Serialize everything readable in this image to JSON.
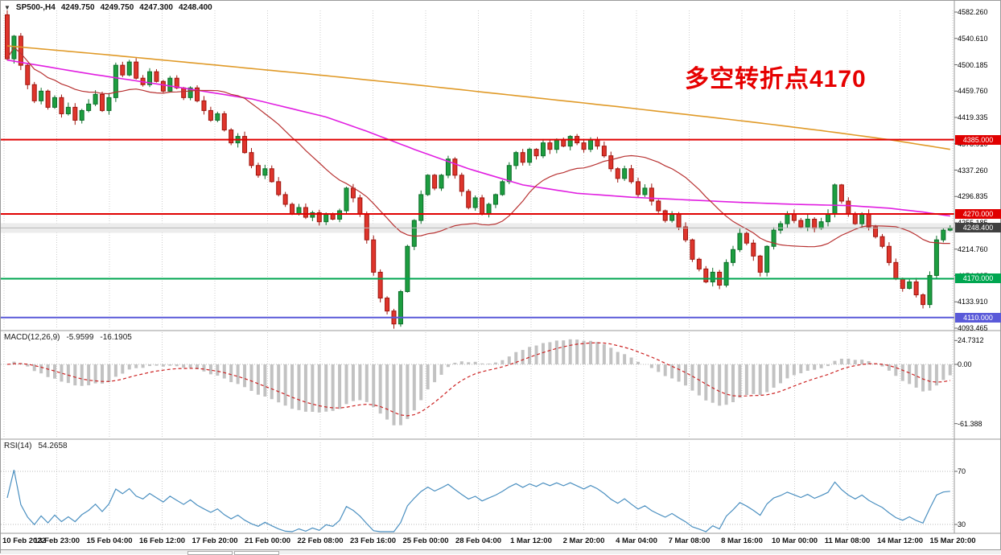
{
  "header": {
    "dropdown_glyph": "▼",
    "symbol": "SP500-,H4",
    "open": "4249.750",
    "high": "4249.750",
    "low": "4247.300",
    "close": "4248.400"
  },
  "annotation": {
    "text": "多空转折点4170",
    "color": "#e60000"
  },
  "colors": {
    "up_fill": "#1d9e40",
    "up_stroke": "#0d6e2a",
    "down_fill": "#df352c",
    "down_stroke": "#9e150e",
    "ma_fast": "#b83232",
    "ma_mid": "#e11fe1",
    "ma_slow": "#e09a28",
    "macd_bar": "#c2c2c2",
    "macd_signal": "#cc2222",
    "rsi_line": "#4a8fc0",
    "grid": "#cccccc"
  },
  "h_lines": [
    {
      "price": 4385.0,
      "color": "#e00000",
      "badge": "4385.000",
      "badge_bg": "#e00000"
    },
    {
      "price": 4270.0,
      "color": "#e00000",
      "badge": "4270.000",
      "badge_bg": "#e00000"
    },
    {
      "price": 4170.0,
      "color": "#00a650",
      "badge": "4170.000",
      "badge_bg": "#00a650"
    },
    {
      "price": 4110.0,
      "color": "#5a5ad9",
      "badge": "4110.000",
      "badge_bg": "#5a5ad9"
    }
  ],
  "current_price": {
    "value": 4248.4,
    "badge": "4248.400",
    "badge_bg": "#404040",
    "line_color": "#b8b8b8"
  },
  "price_axis_ticks": [
    "4582.260",
    "4540.610",
    "4500.185",
    "4459.760",
    "4419.335",
    "4378.910",
    "4337.260",
    "4296.835",
    "4255.185",
    "4214.760",
    "4174.335",
    "4133.910",
    "4093.465"
  ],
  "macd_panel": {
    "label": "MACD(12,26,9)",
    "value_main": "-5.9599",
    "value_signal": "-16.1905",
    "ticks": [
      {
        "label": "24.7312",
        "value": 24.7312
      },
      {
        "label": "0.00",
        "value": 0
      },
      {
        "label": "-61.388",
        "value": -61.388
      }
    ]
  },
  "rsi_panel": {
    "label": "RSI(14)",
    "value": "54.2658",
    "levels": [
      {
        "label": "70",
        "value": 70
      },
      {
        "label": "30",
        "value": 30
      }
    ]
  },
  "time_axis": [
    "10 Feb 2022",
    "13 Feb 23:00",
    "15 Feb 04:00",
    "16 Feb 12:00",
    "17 Feb 20:00",
    "21 Feb 00:00",
    "22 Feb 08:00",
    "23 Feb 16:00",
    "25 Feb 00:00",
    "28 Feb 04:00",
    "1 Mar 12:00",
    "2 Mar 20:00",
    "4 Mar 04:00",
    "7 Mar 08:00",
    "8 Mar 16:00",
    "10 Mar 00:00",
    "11 Mar 08:00",
    "14 Mar 12:00",
    "15 Mar 20:00"
  ],
  "chart_data": {
    "type": "candlestick",
    "symbol": "SP500-",
    "timeframe": "H4",
    "price_range": [
      4093.465,
      4582.26
    ],
    "first_open": 4578,
    "closes": [
      4510,
      4545,
      4500,
      4470,
      4445,
      4460,
      4435,
      4450,
      4425,
      4435,
      4415,
      4430,
      4440,
      4455,
      4430,
      4450,
      4500,
      4485,
      4505,
      4480,
      4470,
      4490,
      4475,
      4460,
      4480,
      4465,
      4450,
      4465,
      4445,
      4430,
      4415,
      4425,
      4400,
      4380,
      4390,
      4365,
      4345,
      4330,
      4340,
      4320,
      4300,
      4285,
      4270,
      4280,
      4265,
      4272,
      4258,
      4270,
      4262,
      4275,
      4310,
      4295,
      4270,
      4230,
      4180,
      4140,
      4120,
      4100,
      4150,
      4220,
      4260,
      4300,
      4330,
      4310,
      4330,
      4355,
      4330,
      4305,
      4280,
      4295,
      4270,
      4285,
      4300,
      4320,
      4345,
      4365,
      4350,
      4370,
      4360,
      4380,
      4370,
      4385,
      4375,
      4390,
      4380,
      4370,
      4385,
      4375,
      4360,
      4340,
      4325,
      4340,
      4320,
      4300,
      4310,
      4290,
      4275,
      4260,
      4270,
      4250,
      4230,
      4200,
      4185,
      4165,
      4180,
      4160,
      4195,
      4215,
      4240,
      4225,
      4205,
      4180,
      4220,
      4245,
      4255,
      4270,
      4260,
      4250,
      4262,
      4248,
      4258,
      4270,
      4315,
      4290,
      4270,
      4255,
      4270,
      4250,
      4235,
      4220,
      4195,
      4170,
      4155,
      4165,
      4145,
      4130,
      4175,
      4230,
      4245,
      4248.4
    ],
    "ma_slow_keypoints": [
      [
        0,
        4530
      ],
      [
        15,
        4516
      ],
      [
        30,
        4501
      ],
      [
        45,
        4486
      ],
      [
        60,
        4470
      ],
      [
        75,
        4453
      ],
      [
        90,
        4436
      ],
      [
        100,
        4424
      ],
      [
        110,
        4412
      ],
      [
        120,
        4399
      ],
      [
        130,
        4385
      ],
      [
        139,
        4370
      ]
    ],
    "ma_mid_keypoints": [
      [
        0,
        4508
      ],
      [
        12,
        4487
      ],
      [
        24,
        4468
      ],
      [
        36,
        4448
      ],
      [
        47,
        4420
      ],
      [
        53,
        4398
      ],
      [
        60,
        4370
      ],
      [
        68,
        4340
      ],
      [
        76,
        4315
      ],
      [
        84,
        4302
      ],
      [
        92,
        4296
      ],
      [
        100,
        4292
      ],
      [
        108,
        4288
      ],
      [
        116,
        4285
      ],
      [
        124,
        4283
      ],
      [
        130,
        4279
      ],
      [
        135,
        4273
      ],
      [
        139,
        4267
      ]
    ],
    "ma_fast_period": 20,
    "macd": {
      "fast": 12,
      "slow": 26,
      "signal": 9
    },
    "rsi_period": 14
  }
}
